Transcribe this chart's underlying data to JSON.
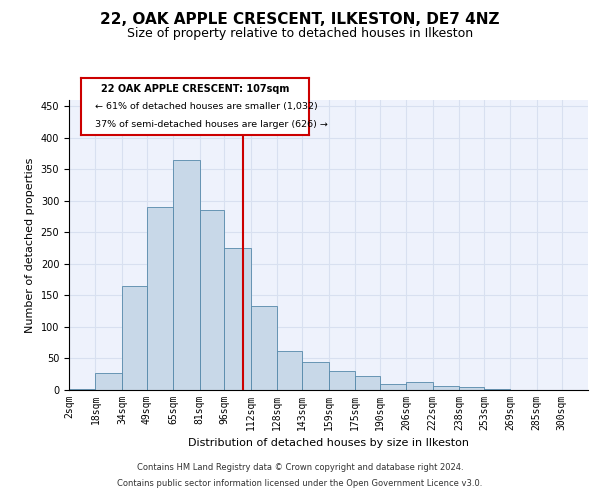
{
  "title": "22, OAK APPLE CRESCENT, ILKESTON, DE7 4NZ",
  "subtitle": "Size of property relative to detached houses in Ilkeston",
  "xlabel": "Distribution of detached houses by size in Ilkeston",
  "ylabel": "Number of detached properties",
  "footer_line1": "Contains HM Land Registry data © Crown copyright and database right 2024.",
  "footer_line2": "Contains public sector information licensed under the Open Government Licence v3.0.",
  "annotation_title": "22 OAK APPLE CRESCENT: 107sqm",
  "annotation_line1": "← 61% of detached houses are smaller (1,032)",
  "annotation_line2": "37% of semi-detached houses are larger (626) →",
  "vline_x": 107,
  "bar_edges": [
    2,
    18,
    34,
    49,
    65,
    81,
    96,
    112,
    128,
    143,
    159,
    175,
    190,
    206,
    222,
    238,
    253,
    269,
    285,
    300,
    316
  ],
  "bar_heights": [
    1,
    27,
    165,
    290,
    365,
    285,
    225,
    133,
    62,
    44,
    30,
    22,
    10,
    12,
    6,
    4,
    1,
    0,
    0,
    0
  ],
  "bar_color": "#c8d8e8",
  "bar_edge_color": "#5588aa",
  "vline_color": "#cc0000",
  "grid_color": "#d8e0f0",
  "bg_color": "#eef2fc",
  "ylim": [
    0,
    460
  ],
  "yticks": [
    0,
    50,
    100,
    150,
    200,
    250,
    300,
    350,
    400,
    450
  ],
  "annotation_box_color": "#cc0000",
  "title_fontsize": 11,
  "subtitle_fontsize": 9,
  "xlabel_fontsize": 8,
  "ylabel_fontsize": 8,
  "tick_fontsize": 7,
  "footer_fontsize": 6
}
